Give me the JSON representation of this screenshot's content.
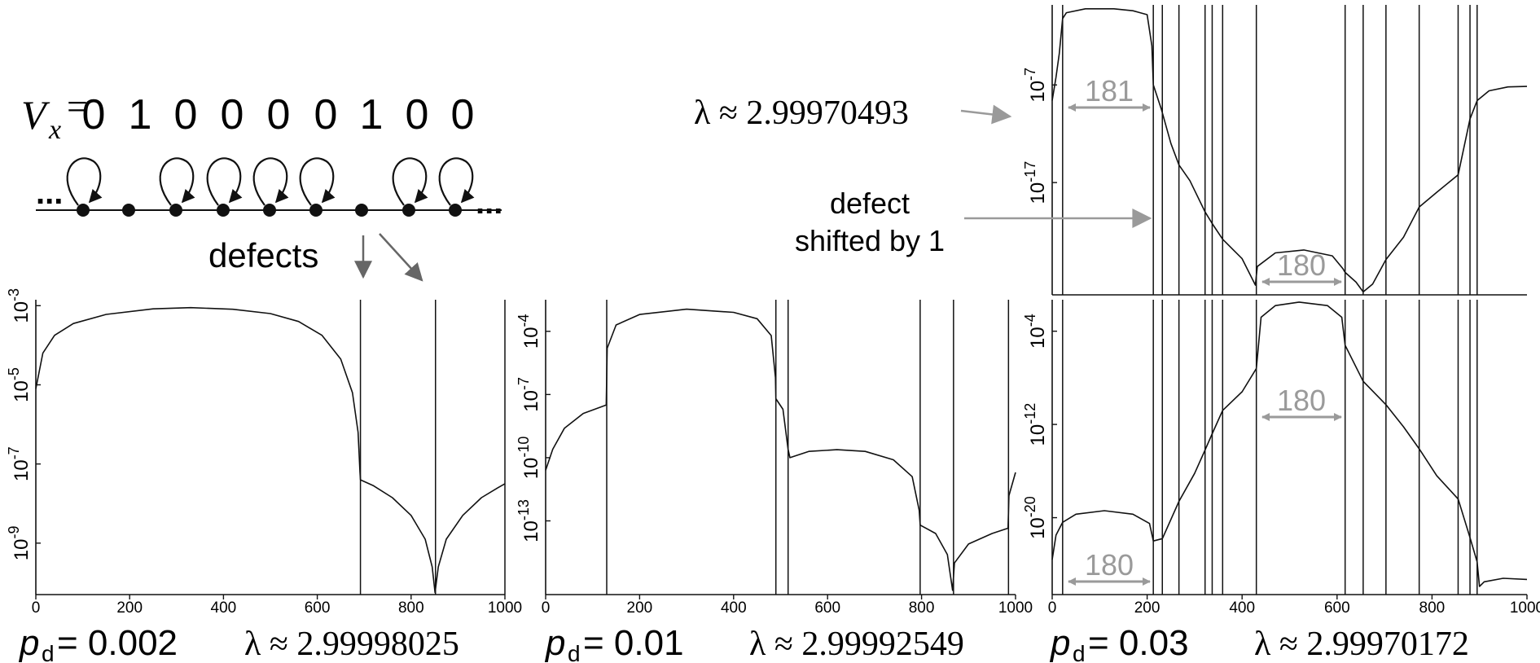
{
  "schematic": {
    "potential_label": "V",
    "potential_sub": "x",
    "equals": "=",
    "sequence": [
      "0",
      "1",
      "0",
      "0",
      "0",
      "0",
      "1",
      "0",
      "0"
    ],
    "ellipsis": "...",
    "defects_label": "defects"
  },
  "annotations": {
    "lambda_label": "λ ≈ 2.99970493",
    "defect_shift_line1": "defect",
    "defect_shift_line2": "shifted by 1",
    "spacing_top": "181",
    "spacing_top_mid": "180",
    "spacing_bottom_left": "180",
    "spacing_bottom_mid": "180"
  },
  "captions": [
    {
      "p_sym": "p",
      "p_sub": "d",
      "p_val": "= 0.002",
      "lambda": "λ ≈ 2.99998025"
    },
    {
      "p_sym": "p",
      "p_sub": "d",
      "p_val": "= 0.01",
      "lambda": "λ ≈ 2.99992549"
    },
    {
      "p_sym": "p",
      "p_sub": "d",
      "p_val": "= 0.03",
      "lambda": "λ ≈ 2.99970172"
    }
  ],
  "colors": {
    "curve": "#111111",
    "annotation_gray": "#9a9a9a",
    "arrow_dark": "#666666"
  },
  "chart_data": [
    {
      "type": "line",
      "panel": "pd-0.002",
      "x_ticks": [
        "0",
        "200",
        "400",
        "600",
        "800",
        "1000"
      ],
      "xlim": [
        0,
        1000
      ],
      "y_scale": "log",
      "y_ticks": [
        {
          "base": "10",
          "exp": "-3",
          "log": -3
        },
        {
          "base": "10",
          "exp": "-5",
          "log": -5
        },
        {
          "base": "10",
          "exp": "-7",
          "log": -7
        },
        {
          "base": "10",
          "exp": "-9",
          "log": -9
        }
      ],
      "ylim_log": [
        -10.3,
        -2.85
      ],
      "defect_lines_x": [
        692,
        852,
        1000
      ],
      "curve_log": [
        [
          0,
          -5.1
        ],
        [
          15,
          -4.2
        ],
        [
          40,
          -3.75
        ],
        [
          80,
          -3.45
        ],
        [
          150,
          -3.22
        ],
        [
          250,
          -3.08
        ],
        [
          330,
          -3.05
        ],
        [
          420,
          -3.09
        ],
        [
          500,
          -3.2
        ],
        [
          560,
          -3.4
        ],
        [
          610,
          -3.75
        ],
        [
          650,
          -4.35
        ],
        [
          675,
          -5.2
        ],
        [
          687,
          -6.2
        ],
        [
          691,
          -7.2
        ],
        [
          692,
          -7.4
        ],
        [
          720,
          -7.55
        ],
        [
          760,
          -7.85
        ],
        [
          800,
          -8.3
        ],
        [
          830,
          -8.9
        ],
        [
          845,
          -9.6
        ],
        [
          851,
          -10.25
        ],
        [
          858,
          -9.6
        ],
        [
          875,
          -8.9
        ],
        [
          910,
          -8.3
        ],
        [
          950,
          -7.85
        ],
        [
          985,
          -7.6
        ],
        [
          1000,
          -7.5
        ]
      ]
    },
    {
      "type": "line",
      "panel": "pd-0.01",
      "x_ticks": [
        "0",
        "200",
        "400",
        "600",
        "800",
        "1000"
      ],
      "xlim": [
        0,
        1000
      ],
      "y_scale": "log",
      "y_ticks": [
        {
          "base": "10",
          "exp": "-4",
          "log": -4
        },
        {
          "base": "10",
          "exp": "-7",
          "log": -7
        },
        {
          "base": "10",
          "exp": "-10",
          "log": -10
        },
        {
          "base": "10",
          "exp": "-13",
          "log": -13
        }
      ],
      "ylim_log": [
        -16.5,
        -2.5
      ],
      "defect_lines_x": [
        130,
        490,
        516,
        797,
        868,
        985
      ],
      "curve_log": [
        [
          0,
          -10.6
        ],
        [
          15,
          -9.6
        ],
        [
          40,
          -8.6
        ],
        [
          80,
          -7.9
        ],
        [
          129,
          -7.5
        ],
        [
          131,
          -4.8
        ],
        [
          150,
          -3.7
        ],
        [
          200,
          -3.2
        ],
        [
          300,
          -2.95
        ],
        [
          400,
          -3.1
        ],
        [
          450,
          -3.4
        ],
        [
          480,
          -4.2
        ],
        [
          489,
          -6.2
        ],
        [
          490,
          -7.2
        ],
        [
          505,
          -7.7
        ],
        [
          516,
          -9.6
        ],
        [
          520,
          -10.0
        ],
        [
          560,
          -9.7
        ],
        [
          620,
          -9.62
        ],
        [
          680,
          -9.7
        ],
        [
          740,
          -10.1
        ],
        [
          780,
          -10.9
        ],
        [
          795,
          -12.5
        ],
        [
          797,
          -13.2
        ],
        [
          830,
          -13.6
        ],
        [
          855,
          -14.6
        ],
        [
          866,
          -16.3
        ],
        [
          870,
          -15.0
        ],
        [
          900,
          -14.1
        ],
        [
          950,
          -13.6
        ],
        [
          984,
          -13.35
        ],
        [
          986,
          -11.8
        ],
        [
          1000,
          -10.7
        ]
      ]
    },
    {
      "type": "line",
      "panel": "pd-0.03-top",
      "x_ticks": [],
      "xlim": [
        0,
        1000
      ],
      "y_scale": "log",
      "y_ticks": [
        {
          "base": "10",
          "exp": "-7",
          "log": -7
        },
        {
          "base": "10",
          "exp": "-17",
          "log": -17
        }
      ],
      "ylim_log": [
        -28.5,
        1.2
      ],
      "defect_lines_x": [
        22,
        213,
        232,
        267,
        322,
        337,
        359,
        430,
        617,
        655,
        703,
        773,
        855,
        880,
        895
      ],
      "curve_log": [
        [
          0,
          -8.6
        ],
        [
          8,
          -6.2
        ],
        [
          15,
          -3.8
        ],
        [
          22,
          -0.2
        ],
        [
          30,
          0.4
        ],
        [
          70,
          0.8
        ],
        [
          130,
          0.8
        ],
        [
          170,
          0.6
        ],
        [
          200,
          0.2
        ],
        [
          210,
          -3
        ],
        [
          213,
          -7
        ],
        [
          230,
          -9.5
        ],
        [
          250,
          -13
        ],
        [
          267,
          -15.2
        ],
        [
          290,
          -16.8
        ],
        [
          322,
          -20
        ],
        [
          337,
          -21.2
        ],
        [
          359,
          -22.8
        ],
        [
          400,
          -24.8
        ],
        [
          428,
          -27.5
        ],
        [
          432,
          -25.6
        ],
        [
          470,
          -24.2
        ],
        [
          530,
          -23.9
        ],
        [
          590,
          -24.5
        ],
        [
          612,
          -25.8
        ],
        [
          617,
          -26.2
        ],
        [
          640,
          -27.2
        ],
        [
          655,
          -28.2
        ],
        [
          675,
          -27.4
        ],
        [
          703,
          -24.9
        ],
        [
          740,
          -22.6
        ],
        [
          773,
          -19.5
        ],
        [
          810,
          -18
        ],
        [
          855,
          -16.2
        ],
        [
          880,
          -10.5
        ],
        [
          895,
          -8.6
        ],
        [
          920,
          -7.6
        ],
        [
          960,
          -7.2
        ],
        [
          1000,
          -7.15
        ]
      ]
    },
    {
      "type": "line",
      "panel": "pd-0.03-bottom",
      "x_ticks": [
        "0",
        "200",
        "400",
        "600",
        "800",
        "1000"
      ],
      "xlim": [
        0,
        1000
      ],
      "y_scale": "log",
      "y_ticks": [
        {
          "base": "10",
          "exp": "-4",
          "log": -4
        },
        {
          "base": "10",
          "exp": "-12",
          "log": -12
        },
        {
          "base": "10",
          "exp": "-20",
          "log": -20
        }
      ],
      "ylim_log": [
        -26.6,
        -1.3
      ],
      "defect_lines_x": [
        22,
        213,
        232,
        267,
        322,
        337,
        359,
        430,
        617,
        655,
        703,
        773,
        855,
        880,
        895
      ],
      "curve_log": [
        [
          0,
          -23.6
        ],
        [
          8,
          -21.5
        ],
        [
          22,
          -20.4
        ],
        [
          50,
          -19.7
        ],
        [
          110,
          -19.4
        ],
        [
          170,
          -19.7
        ],
        [
          205,
          -20.5
        ],
        [
          213,
          -22
        ],
        [
          232,
          -21.8
        ],
        [
          267,
          -18.6
        ],
        [
          300,
          -16.2
        ],
        [
          322,
          -14.2
        ],
        [
          337,
          -12.8
        ],
        [
          359,
          -10.8
        ],
        [
          400,
          -9.2
        ],
        [
          430,
          -7.2
        ],
        [
          440,
          -2.8
        ],
        [
          470,
          -1.8
        ],
        [
          520,
          -1.5
        ],
        [
          580,
          -1.8
        ],
        [
          610,
          -2.8
        ],
        [
          617,
          -5.2
        ],
        [
          655,
          -8.3
        ],
        [
          703,
          -10.3
        ],
        [
          740,
          -12.2
        ],
        [
          773,
          -14.1
        ],
        [
          810,
          -16.4
        ],
        [
          855,
          -18.4
        ],
        [
          880,
          -21.7
        ],
        [
          895,
          -23.8
        ],
        [
          900,
          -25.9
        ],
        [
          910,
          -25.5
        ],
        [
          950,
          -25.2
        ],
        [
          1000,
          -25.3
        ]
      ]
    }
  ]
}
